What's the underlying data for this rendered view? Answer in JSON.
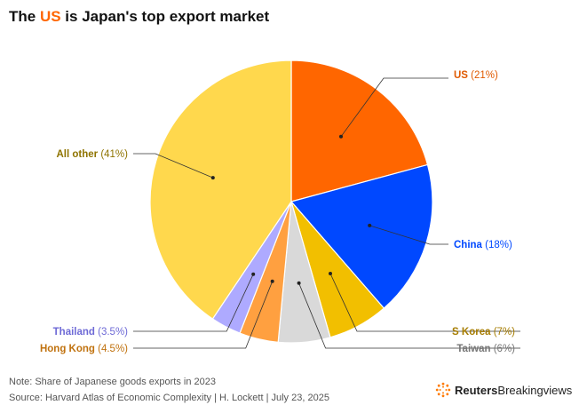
{
  "header": {
    "title_before": "The ",
    "title_highlight": "US",
    "title_after": " is Japan's top export market"
  },
  "chart_data": {
    "type": "pie",
    "title": "The US is Japan's top export market",
    "slices": [
      {
        "name": "US",
        "value": 21,
        "pct_label": "(21%)",
        "color": "#ff6600"
      },
      {
        "name": "China",
        "value": 18,
        "pct_label": "(18%)",
        "color": "#0048ff"
      },
      {
        "name": "S Korea",
        "value": 7,
        "pct_label": "(7%)",
        "color": "#f2bf00"
      },
      {
        "name": "Taiwan",
        "value": 6,
        "pct_label": "(6%)",
        "color": "#d9d9d9"
      },
      {
        "name": "Hong Kong",
        "value": 4.5,
        "pct_label": "(4.5%)",
        "color": "#ffa040"
      },
      {
        "name": "Thailand",
        "value": 3.5,
        "pct_label": "(3.5%)",
        "color": "#aeaaff"
      },
      {
        "name": "All other",
        "value": 41,
        "pct_label": "(41%)",
        "color": "#ffd84d"
      }
    ],
    "label_colors": {
      "US": "#e05a00",
      "China": "#0048ff",
      "S Korea": "#a67c00",
      "Taiwan": "#777777",
      "Hong Kong": "#c0720f",
      "Thailand": "#6e6ad6",
      "All other": "#8f7400"
    }
  },
  "footer": {
    "note": "Note: Share of Japanese goods exports in 2023",
    "source": "Source: Harvard Atlas of Economic Complexity | H. Lockett | July 23, 2025",
    "logo_brand": "Reuters",
    "logo_sub": "Breakingviews"
  }
}
